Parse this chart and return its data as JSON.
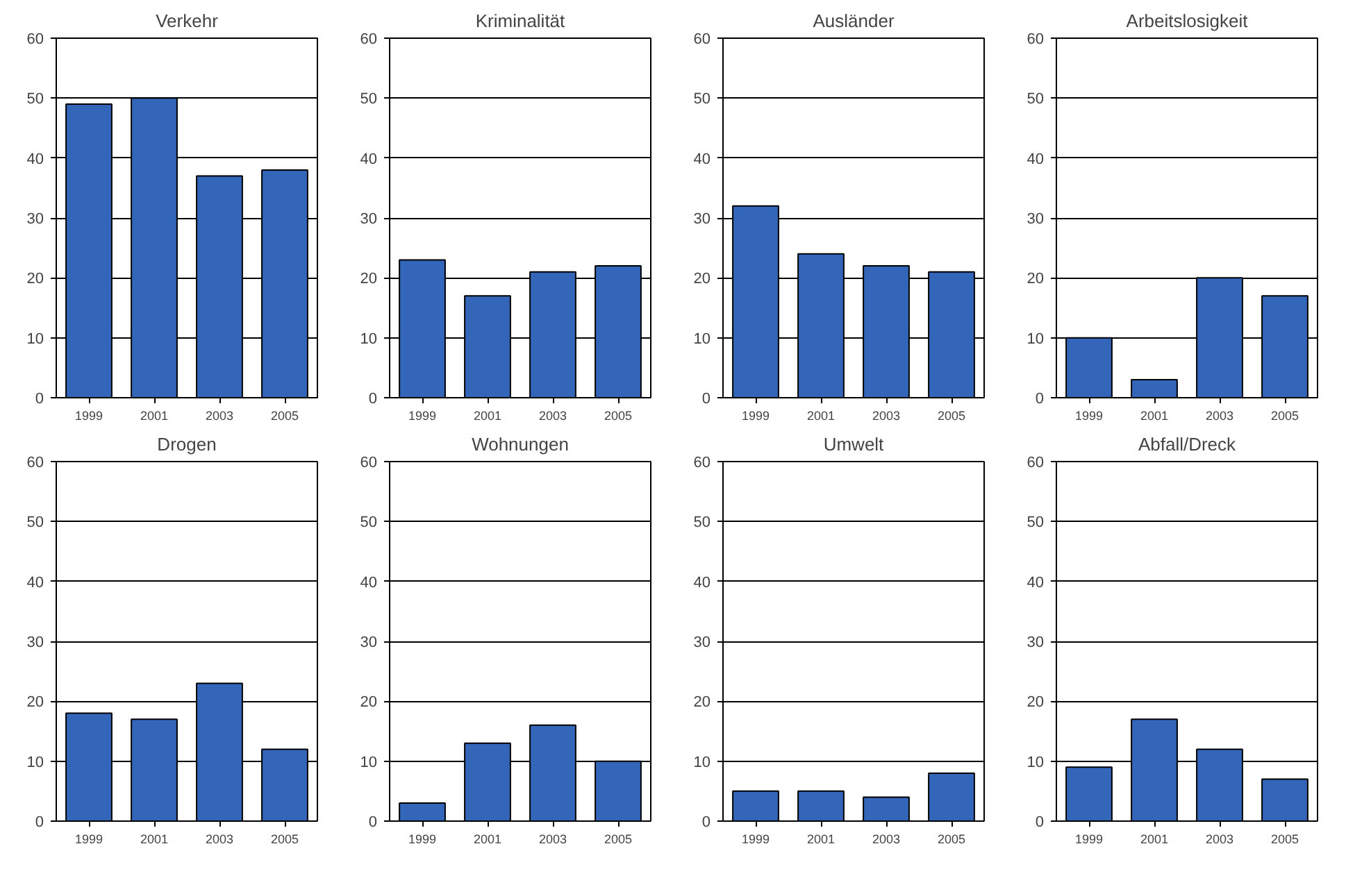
{
  "chart_data": [
    {
      "type": "bar",
      "title": "Verkehr",
      "categories": [
        "1999",
        "2001",
        "2003",
        "2005"
      ],
      "values": [
        49,
        50,
        37,
        38
      ],
      "color": "#3366b8",
      "ylim": [
        0,
        60
      ],
      "yticks": [
        0,
        10,
        20,
        30,
        40,
        50,
        60
      ],
      "grid": "y"
    },
    {
      "type": "bar",
      "title": "Kriminalität",
      "categories": [
        "1999",
        "2001",
        "2003",
        "2005"
      ],
      "values": [
        23,
        17,
        21,
        22
      ],
      "color": "#3366b8",
      "ylim": [
        0,
        60
      ],
      "yticks": [
        0,
        10,
        20,
        30,
        40,
        50,
        60
      ],
      "grid": "y"
    },
    {
      "type": "bar",
      "title": "Ausländer",
      "categories": [
        "1999",
        "2001",
        "2003",
        "2005"
      ],
      "values": [
        32,
        24,
        22,
        21
      ],
      "color": "#3366b8",
      "ylim": [
        0,
        60
      ],
      "yticks": [
        0,
        10,
        20,
        30,
        40,
        50,
        60
      ],
      "grid": "y"
    },
    {
      "type": "bar",
      "title": "Arbeitslosigkeit",
      "categories": [
        "1999",
        "2001",
        "2003",
        "2005"
      ],
      "values": [
        10,
        3,
        20,
        17
      ],
      "color": "#3366b8",
      "ylim": [
        0,
        60
      ],
      "yticks": [
        0,
        10,
        20,
        30,
        40,
        50,
        60
      ],
      "grid": "y"
    },
    {
      "type": "bar",
      "title": "Drogen",
      "categories": [
        "1999",
        "2001",
        "2003",
        "2005"
      ],
      "values": [
        18,
        17,
        23,
        12
      ],
      "color": "#3366b8",
      "ylim": [
        0,
        60
      ],
      "yticks": [
        0,
        10,
        20,
        30,
        40,
        50,
        60
      ],
      "grid": "y"
    },
    {
      "type": "bar",
      "title": "Wohnungen",
      "categories": [
        "1999",
        "2001",
        "2003",
        "2005"
      ],
      "values": [
        3,
        13,
        16,
        10
      ],
      "color": "#3366b8",
      "ylim": [
        0,
        60
      ],
      "yticks": [
        0,
        10,
        20,
        30,
        40,
        50,
        60
      ],
      "grid": "y"
    },
    {
      "type": "bar",
      "title": "Umwelt",
      "categories": [
        "1999",
        "2001",
        "2003",
        "2005"
      ],
      "values": [
        5,
        5,
        4,
        8
      ],
      "color": "#3366b8",
      "ylim": [
        0,
        60
      ],
      "yticks": [
        0,
        10,
        20,
        30,
        40,
        50,
        60
      ],
      "grid": "y"
    },
    {
      "type": "bar",
      "title": "Abfall/Dreck",
      "categories": [
        "1999",
        "2001",
        "2003",
        "2005"
      ],
      "values": [
        9,
        17,
        12,
        7
      ],
      "color": "#3366b8",
      "ylim": [
        0,
        60
      ],
      "yticks": [
        0,
        10,
        20,
        30,
        40,
        50,
        60
      ],
      "grid": "y"
    }
  ]
}
